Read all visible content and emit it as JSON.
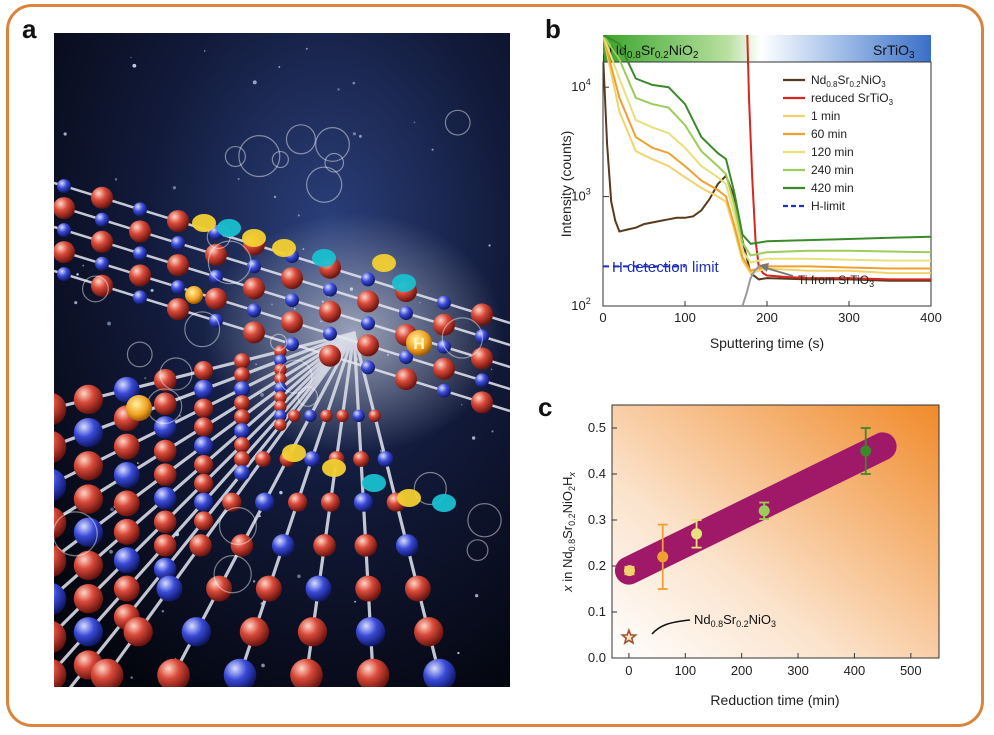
{
  "panels": {
    "a": "a",
    "b": "b",
    "c": "c"
  },
  "art": {
    "h_label": "H"
  },
  "panel_b": {
    "band_left": "Nd0.8Sr0.2NiO2",
    "band_right": "SrTiO3",
    "ylabel": "Intensity (counts)",
    "xlabel": "Sputtering time (s)",
    "x_ticks": [
      "0",
      "100",
      "200",
      "300",
      "400"
    ],
    "y_ticks": [
      "10^2",
      "10^3",
      "10^4"
    ],
    "annotation_detection": "H detection limit",
    "annotation_ti": "Ti from SrTiO3",
    "legend": [
      "Nd0.8Sr0.2NiO3",
      "reduced SrTiO3",
      "1 min",
      "60 min",
      "120 min",
      "240 min",
      "420 min",
      "H-limit"
    ]
  },
  "panel_c": {
    "ylabel": "x in Nd0.8Sr0.2NiO2Hx",
    "xlabel": "Reduction time (min)",
    "annotation": "Nd0.8Sr0.2NiO3",
    "x_ticks": [
      "0",
      "100",
      "200",
      "300",
      "400",
      "500"
    ],
    "y_ticks": [
      "0.0",
      "0.1",
      "0.2",
      "0.3",
      "0.4",
      "0.5"
    ]
  },
  "chart_data": [
    {
      "panel": "b",
      "type": "line",
      "xlabel": "Sputtering time (s)",
      "ylabel": "Intensity (counts)",
      "xlim": [
        0,
        400
      ],
      "ylim": [
        100,
        30000
      ],
      "y_scale": "log",
      "legend_position": "top-right",
      "colors": {
        "Nd0.8Sr0.2NiO3": "#5a3a1c",
        "reduced SrTiO3": "#d7261e",
        "1 min": "#f2d36b",
        "60 min": "#f0a030",
        "120 min": "#e8e07a",
        "240 min": "#9ccc5a",
        "420 min": "#3a8a2a",
        "H-limit": "#1f2fbf",
        "Ti": "#999999"
      },
      "series": [
        {
          "name": "Nd0.8Sr0.2NiO3",
          "x": [
            0,
            5,
            10,
            15,
            20,
            30,
            40,
            50,
            60,
            70,
            80,
            90,
            100,
            110,
            120,
            130,
            140,
            150,
            160,
            170,
            180,
            190,
            200,
            250,
            300,
            350,
            400
          ],
          "y": [
            20000,
            3000,
            900,
            600,
            480,
            500,
            520,
            560,
            580,
            600,
            620,
            640,
            640,
            660,
            750,
            950,
            1300,
            1550,
            1000,
            400,
            200,
            175,
            180,
            175,
            175,
            170,
            170
          ]
        },
        {
          "name": "reduced SrTiO3",
          "x": [
            176,
            178,
            182,
            186,
            190,
            195,
            200,
            220,
            250,
            300,
            350,
            400
          ],
          "y": [
            30000,
            8000,
            1500,
            400,
            230,
            200,
            190,
            185,
            180,
            180,
            175,
            175
          ]
        },
        {
          "name": "1 min",
          "x": [
            0,
            20,
            40,
            60,
            80,
            100,
            120,
            140,
            150,
            160,
            170,
            180,
            190,
            200,
            250,
            300,
            350,
            400
          ],
          "y": [
            30000,
            6000,
            2600,
            2200,
            1900,
            1500,
            1200,
            1000,
            900,
            500,
            260,
            200,
            210,
            220,
            210,
            210,
            200,
            200
          ]
        },
        {
          "name": "60 min",
          "x": [
            0,
            20,
            40,
            60,
            80,
            100,
            120,
            140,
            150,
            160,
            170,
            180,
            190,
            200,
            250,
            300,
            350,
            400
          ],
          "y": [
            30000,
            8000,
            3500,
            2800,
            2500,
            1900,
            1400,
            1150,
            1000,
            550,
            280,
            210,
            220,
            230,
            230,
            225,
            220,
            220
          ]
        },
        {
          "name": "120 min",
          "x": [
            0,
            20,
            40,
            60,
            80,
            100,
            120,
            140,
            150,
            160,
            170,
            180,
            190,
            200,
            250,
            300,
            350,
            400
          ],
          "y": [
            30000,
            12000,
            5000,
            4300,
            3800,
            2800,
            1900,
            1500,
            1300,
            700,
            320,
            250,
            260,
            270,
            270,
            265,
            260,
            260
          ]
        },
        {
          "name": "240 min",
          "x": [
            0,
            20,
            40,
            60,
            80,
            100,
            120,
            140,
            150,
            160,
            170,
            180,
            190,
            200,
            250,
            300,
            350,
            400
          ],
          "y": [
            30000,
            18000,
            8000,
            7000,
            6500,
            4500,
            2600,
            1900,
            1600,
            850,
            380,
            290,
            300,
            310,
            320,
            320,
            315,
            310
          ]
        },
        {
          "name": "420 min",
          "x": [
            0,
            20,
            40,
            60,
            80,
            100,
            120,
            140,
            150,
            160,
            170,
            180,
            190,
            200,
            250,
            300,
            350,
            400
          ],
          "y": [
            30000,
            25000,
            12000,
            10500,
            10000,
            7000,
            3500,
            2500,
            2200,
            1100,
            450,
            370,
            380,
            390,
            400,
            410,
            420,
            430
          ]
        },
        {
          "name": "H-limit",
          "x": [
            0,
            100
          ],
          "y": [
            230,
            230
          ]
        },
        {
          "name": "Ti from SrTiO3",
          "x": [
            170,
            175,
            180,
            185,
            190,
            200
          ],
          "y": [
            100,
            130,
            180,
            210,
            230,
            240
          ]
        }
      ]
    },
    {
      "panel": "c",
      "type": "scatter",
      "xlabel": "Reduction time (min)",
      "ylabel": "x in Nd0.8Sr0.2NiO2Hx",
      "xlim": [
        -30,
        550
      ],
      "ylim": [
        0,
        0.55
      ],
      "points": [
        {
          "label": "1 min",
          "x": 1,
          "y": 0.19,
          "err": 0.008,
          "color": "#f2d36b"
        },
        {
          "label": "60 min",
          "x": 60,
          "y": 0.22,
          "err": 0.07,
          "color": "#f0a030"
        },
        {
          "label": "120 min",
          "x": 120,
          "y": 0.27,
          "err": 0.03,
          "color": "#e8e07a"
        },
        {
          "label": "240 min",
          "x": 240,
          "y": 0.32,
          "err": 0.018,
          "color": "#9ccc5a"
        },
        {
          "label": "420 min",
          "x": 420,
          "y": 0.45,
          "err": 0.05,
          "color": "#3a8a2a"
        }
      ],
      "reference": {
        "label": "Nd0.8Sr0.2NiO3",
        "x": 0,
        "y": 0.045,
        "marker": "star",
        "color": "#a0522d"
      },
      "trend_band": {
        "x": [
          0,
          450
        ],
        "y": [
          0.19,
          0.46
        ],
        "color": "#a01868"
      }
    }
  ]
}
